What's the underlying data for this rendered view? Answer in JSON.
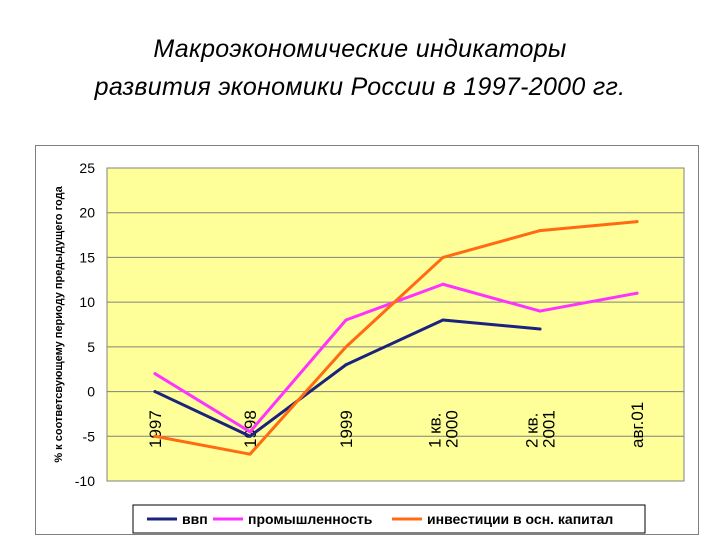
{
  "title_line1": "Макроэкономические индикаторы",
  "title_line2": "развития экономики России в 1997-2000 гг.",
  "chart_data": {
    "type": "line",
    "ylabel": "% к соответсвующему периоду предыдущего года",
    "xlabel": "",
    "ylim": [
      -10,
      25
    ],
    "yticks": [
      25,
      20,
      15,
      10,
      5,
      0,
      -5,
      -10
    ],
    "categories": [
      [
        "1997"
      ],
      [
        "1998"
      ],
      [
        "1999"
      ],
      [
        "1 кв.",
        "2000"
      ],
      [
        "2 кв.",
        "2001"
      ],
      [
        "авг.01"
      ]
    ],
    "grid": true,
    "plot_background": "#ffff99",
    "legend_position": "bottom",
    "series": [
      {
        "name": "ввп",
        "color": "#1a237e",
        "values": [
          0,
          -5,
          3,
          8,
          7,
          null
        ]
      },
      {
        "name": "промышленность",
        "color": "#ff33ff",
        "values": [
          2,
          -4.5,
          8,
          12,
          9,
          11
        ]
      },
      {
        "name": "инвестиции в осн. капитал",
        "color": "#ff6a13",
        "values": [
          -5,
          -7,
          5,
          15,
          18,
          19
        ]
      }
    ]
  }
}
